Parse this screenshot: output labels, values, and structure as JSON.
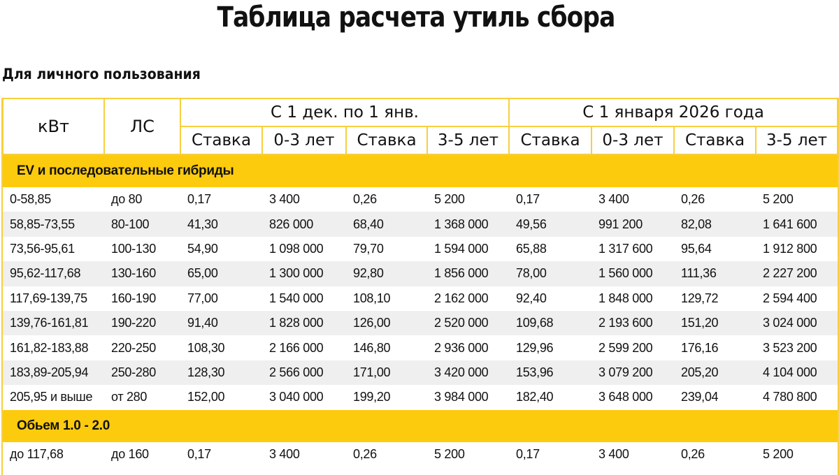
{
  "title": "Таблица расчета утиль сбора",
  "subtitle": "Для личного пользования",
  "colors": {
    "accent": "#fdcb0d",
    "border": "#f7cf3f",
    "stripe": "#efefef"
  },
  "header": {
    "kw": "кВт",
    "hp": "ЛС",
    "period1": "С 1 дек. по 1 янв.",
    "period2": "С 1 января 2026 года",
    "subcols": [
      "Ставка",
      "0-3 лет",
      "Ставка",
      "3-5 лет",
      "Ставка",
      "0-3 лет",
      "Ставка",
      "3-5 лет"
    ]
  },
  "sections": [
    {
      "label": "EV и последовательные гибриды",
      "rows": [
        [
          "0-58,85",
          "до 80",
          "0,17",
          "3 400",
          "0,26",
          "5 200",
          "0,17",
          "3 400",
          "0,26",
          "5 200"
        ],
        [
          "58,85-73,55",
          "80-100",
          "41,30",
          "826 000",
          "68,40",
          "1 368 000",
          "49,56",
          "991 200",
          "82,08",
          "1 641 600"
        ],
        [
          "73,56-95,61",
          "100-130",
          "54,90",
          "1 098 000",
          "79,70",
          "1 594 000",
          "65,88",
          "1 317 600",
          "95,64",
          "1 912 800"
        ],
        [
          "95,62-117,68",
          "130-160",
          "65,00",
          "1 300 000",
          "92,80",
          "1 856 000",
          "78,00",
          "1 560 000",
          "111,36",
          "2 227 200"
        ],
        [
          "117,69-139,75",
          "160-190",
          "77,00",
          "1 540 000",
          "108,10",
          "2 162 000",
          "92,40",
          "1 848 000",
          "129,72",
          "2 594 400"
        ],
        [
          "139,76-161,81",
          "190-220",
          "91,40",
          "1 828 000",
          "126,00",
          "2 520 000",
          "109,68",
          "2 193 600",
          "151,20",
          "3 024 000"
        ],
        [
          "161,82-183,88",
          "220-250",
          "108,30",
          "2 166 000",
          "146,80",
          "2 936 000",
          "129,96",
          "2 599 200",
          "176,16",
          "3 523 200"
        ],
        [
          "183,89-205,94",
          "250-280",
          "128,30",
          "2 566 000",
          "171,00",
          "3 420 000",
          "153,96",
          "3 079 200",
          "205,20",
          "4 104 000"
        ],
        [
          "205,95 и выше",
          "от 280",
          "152,00",
          "3 040 000",
          "199,20",
          "3 984 000",
          "182,40",
          "3 648 000",
          "239,04",
          "4 780 800"
        ]
      ]
    },
    {
      "label": "Обьем 1.0 - 2.0",
      "rows": [
        [
          "до 117,68",
          "до 160",
          "0,17",
          "3 400",
          "0,26",
          "5 200",
          "0,17",
          "3 400",
          "0,26",
          "5 200"
        ]
      ]
    }
  ]
}
